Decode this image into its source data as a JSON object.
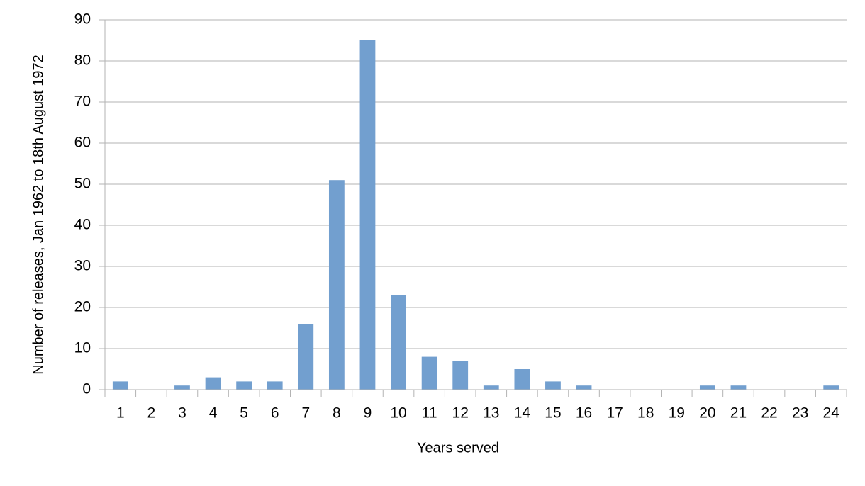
{
  "chart_data": {
    "type": "bar",
    "x_label": "Years served",
    "y_label": "Number of releases, Jan 1962 to 18th August 1972",
    "categories": [
      "1",
      "2",
      "3",
      "4",
      "5",
      "6",
      "7",
      "8",
      "9",
      "10",
      "11",
      "12",
      "13",
      "14",
      "15",
      "16",
      "17",
      "18",
      "19",
      "20",
      "21",
      "22",
      "23",
      "24"
    ],
    "values": [
      2,
      0,
      1,
      3,
      2,
      2,
      16,
      51,
      85,
      23,
      8,
      7,
      1,
      5,
      2,
      1,
      0,
      0,
      0,
      1,
      1,
      0,
      0,
      1
    ],
    "color": "#729fcf",
    "ylim": [
      0,
      90
    ],
    "yticks": [
      0,
      10,
      20,
      30,
      40,
      50,
      60,
      70,
      80,
      90
    ],
    "grid": true
  }
}
